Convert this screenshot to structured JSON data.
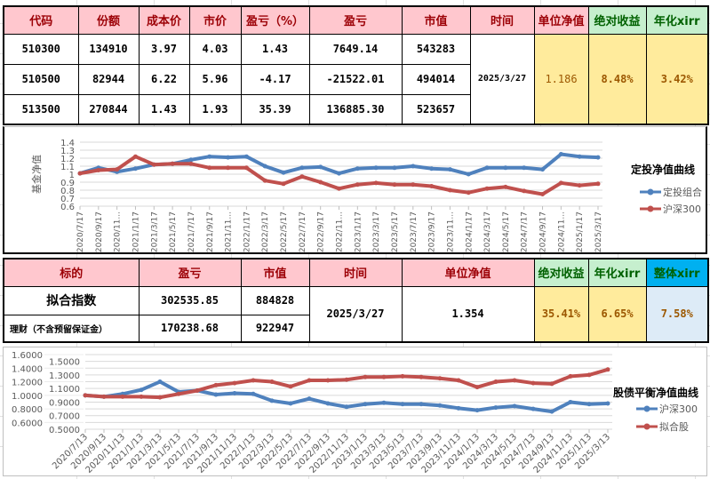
{
  "table1": {
    "headers": [
      "代码",
      "份额",
      "成本价",
      "市价",
      "盈亏（%）",
      "盈亏",
      "市值",
      "时间",
      "单位净值",
      "绝对收益",
      "年化xirr"
    ],
    "rows": [
      [
        "510300",
        "134910",
        "3.97",
        "4.03",
        "1.43",
        "7649.14",
        "543283"
      ],
      [
        "510500",
        "82944",
        "6.22",
        "5.96",
        "-4.17",
        "-21522.01",
        "494014"
      ],
      [
        "513500",
        "270844",
        "1.43",
        "1.93",
        "35.39",
        "136885.30",
        "523657"
      ]
    ],
    "time": "2025/3/27",
    "nav": "1.186",
    "abs_return": "8.48%",
    "xirr": "3.42%"
  },
  "table2": {
    "headers": [
      "标的",
      "盈亏",
      "市值",
      "时间",
      "单位净值",
      "绝对收益",
      "年化xirr",
      "整体xirr"
    ],
    "rows": [
      [
        "拟合指数",
        "302535.85",
        "884828"
      ],
      [
        "理财（不含预留保证金）",
        "170238.68",
        "922947"
      ]
    ],
    "time": "2025/3/27",
    "nav": "1.354",
    "abs_return": "35.41%",
    "xirr": "6.65%",
    "overall_xirr": "7.58%"
  },
  "colors": {
    "header_pink": "#ffc7ce",
    "header_text": "#9c0006",
    "green": "#c6efce",
    "green_text": "#006100",
    "yellow": "#ffeb9c",
    "yellow_text": "#9c5700",
    "blue_header": "#00b0f0",
    "light_blue": "#ddebf7",
    "series_blue": "#4f81bd",
    "series_red": "#c0504d"
  },
  "chart_data": [
    {
      "type": "line",
      "title": "定投净值曲线",
      "ylabel": "基金净值",
      "ylim": [
        0.6,
        1.4
      ],
      "yticks": [
        "0.6",
        "0.7",
        "0.8",
        "0.9",
        "1",
        "1.1",
        "1.2",
        "1.3",
        "1.4"
      ],
      "grid": true,
      "legend": "right",
      "x": [
        "2020/7/17",
        "2020/9/17",
        "2020/11...",
        "2021/1/17",
        "2021/3/17",
        "2021/5/17",
        "2021/7/17",
        "2021/9/17",
        "2021/11...",
        "2022/1/17",
        "2022/3/17",
        "2022/5/17",
        "2022/7/17",
        "2022/9/17",
        "2022/11...",
        "2023/1/17",
        "2023/3/17",
        "2023/5/17",
        "2023/7/17",
        "2023/9/17",
        "2023/11...",
        "2024/1/17",
        "2024/3/17",
        "2024/5/17",
        "2024/7/17",
        "2024/9/17",
        "2024/11...",
        "2025/1/17",
        "2025/3/17"
      ],
      "series": [
        {
          "name": "定投组合",
          "color": "#4f81bd",
          "values": [
            1.01,
            1.08,
            1.03,
            1.07,
            1.12,
            1.13,
            1.18,
            1.22,
            1.21,
            1.22,
            1.1,
            1.02,
            1.08,
            1.09,
            1.01,
            1.07,
            1.08,
            1.08,
            1.1,
            1.07,
            1.06,
            1.0,
            1.08,
            1.08,
            1.08,
            1.06,
            1.25,
            1.22,
            1.21
          ]
        },
        {
          "name": "沪深300",
          "color": "#c0504d",
          "values": [
            1.01,
            1.05,
            1.06,
            1.22,
            1.12,
            1.13,
            1.13,
            1.08,
            1.08,
            1.08,
            0.92,
            0.88,
            0.97,
            0.9,
            0.82,
            0.87,
            0.89,
            0.87,
            0.87,
            0.85,
            0.8,
            0.77,
            0.82,
            0.84,
            0.79,
            0.75,
            0.89,
            0.86,
            0.88
          ]
        }
      ]
    },
    {
      "type": "line",
      "title": "股债平衡净值曲线",
      "ylim": [
        0.5,
        1.6
      ],
      "yticks": [
        "0.5000",
        "0.6000",
        "0.7000",
        "0.8000",
        "0.9000",
        "1.0000",
        "1.1000",
        "1.2000",
        "1.3000",
        "1.4000",
        "1.5000",
        "1.6000"
      ],
      "grid": true,
      "legend": "right",
      "x": [
        "2020/7/13",
        "2020/9/13",
        "2020/11/13",
        "2021/1/13",
        "2021/3/13",
        "2021/5/13",
        "2021/7/13",
        "2021/9/13",
        "2021/11/13",
        "2022/1/13",
        "2022/3/13",
        "2022/5/13",
        "2022/7/13",
        "2022/9/13",
        "2022/11/13",
        "2023/1/13",
        "2023/3/13",
        "2023/5/13",
        "2023/7/13",
        "2023/9/13",
        "2023/11/13",
        "2024/1/13",
        "2024/3/13",
        "2024/5/13",
        "2024/7/13",
        "2024/9/13",
        "2024/11/13",
        "2025/1/13",
        "2025/3/13"
      ],
      "series": [
        {
          "name": "沪深300",
          "color": "#4f81bd",
          "values": [
            1.0,
            0.98,
            1.02,
            1.08,
            1.2,
            1.05,
            1.07,
            1.01,
            1.03,
            1.02,
            0.92,
            0.88,
            0.95,
            0.88,
            0.83,
            0.87,
            0.89,
            0.87,
            0.87,
            0.85,
            0.81,
            0.78,
            0.82,
            0.84,
            0.8,
            0.76,
            0.9,
            0.87,
            0.88
          ]
        },
        {
          "name": "拟合股",
          "color": "#c0504d",
          "values": [
            1.0,
            0.98,
            0.98,
            0.98,
            0.97,
            1.02,
            1.07,
            1.15,
            1.18,
            1.22,
            1.2,
            1.13,
            1.22,
            1.22,
            1.23,
            1.27,
            1.27,
            1.28,
            1.27,
            1.25,
            1.22,
            1.12,
            1.2,
            1.22,
            1.18,
            1.17,
            1.28,
            1.3,
            1.38
          ]
        }
      ]
    }
  ]
}
